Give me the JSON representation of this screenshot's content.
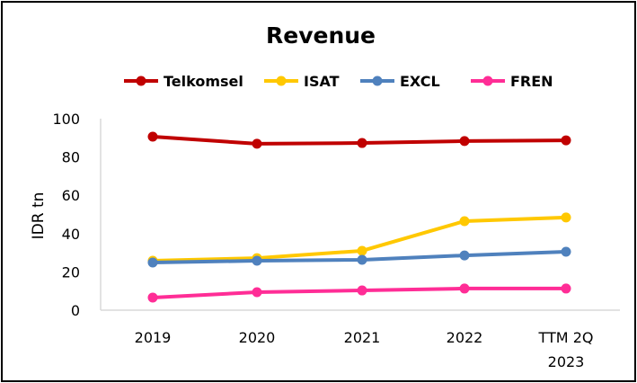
{
  "chart_data": {
    "type": "line",
    "title": "Revenue",
    "xlabel": "",
    "ylabel": "IDR tn",
    "ylim": [
      0,
      100
    ],
    "yticks": [
      0,
      20,
      40,
      60,
      80,
      100
    ],
    "categories": [
      "2019",
      "2020",
      "2021",
      "2022",
      "TTM 2Q 2023"
    ],
    "category_lines": [
      [
        "2019"
      ],
      [
        "2020"
      ],
      [
        "2021"
      ],
      [
        "2022"
      ],
      [
        "TTM 2Q",
        "2023"
      ]
    ],
    "legend_position": "top",
    "grid": false,
    "series": [
      {
        "name": "Telkomsel",
        "color": "#C00000",
        "values": [
          90.6,
          86.9,
          87.3,
          88.3,
          88.7
        ]
      },
      {
        "name": "ISAT",
        "color": "#FFC800",
        "values": [
          25.8,
          27.2,
          31.0,
          46.5,
          48.4
        ]
      },
      {
        "name": "EXCL",
        "color": "#4F81BD",
        "values": [
          24.9,
          25.8,
          26.3,
          28.6,
          30.5
        ]
      },
      {
        "name": "FREN",
        "color": "#FF2D96",
        "values": [
          6.6,
          9.4,
          10.3,
          11.3,
          11.3
        ]
      }
    ]
  }
}
